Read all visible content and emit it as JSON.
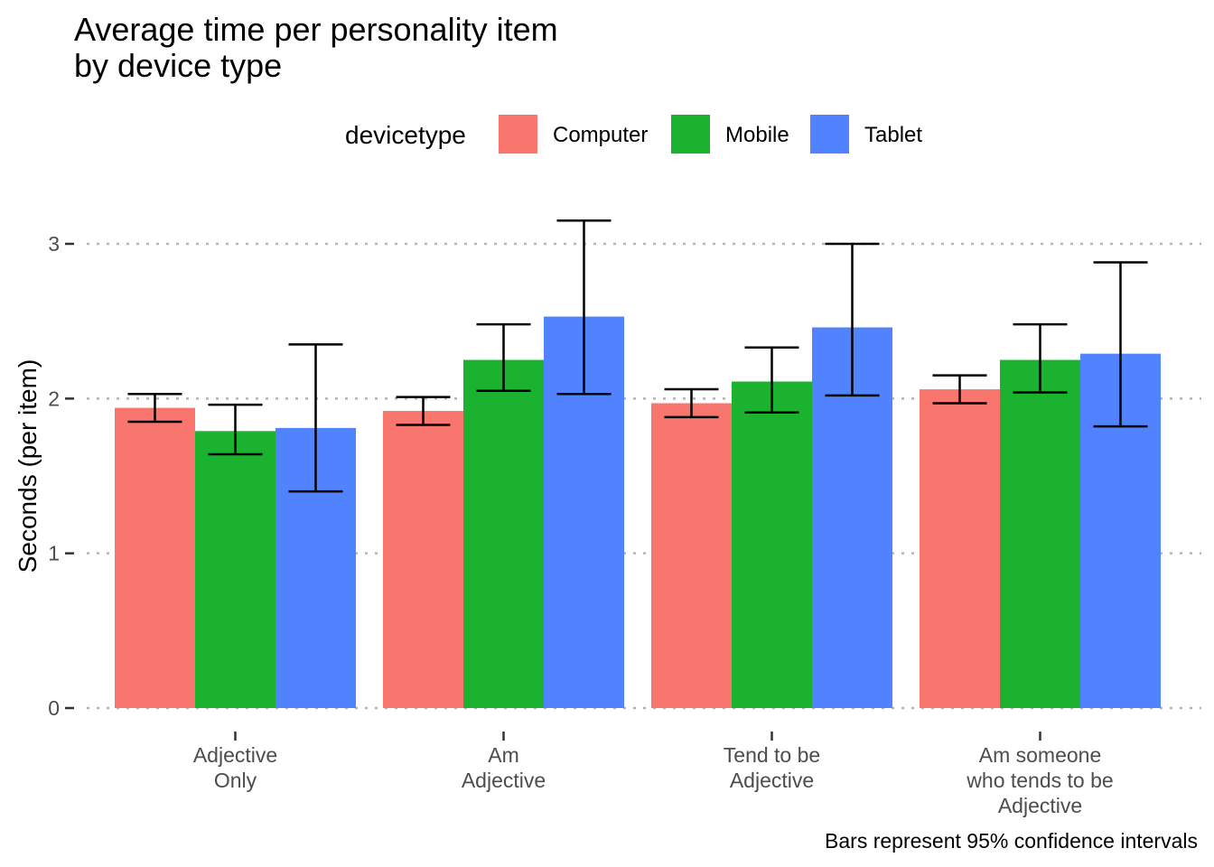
{
  "chart_data": {
    "type": "bar",
    "title": [
      "Average time per personality item",
      "by device type"
    ],
    "ylabel": "Seconds (per item)",
    "xlabel": "",
    "caption": "Bars represent 95% confidence intervals",
    "legend": {
      "title": "devicetype",
      "position": "top"
    },
    "ylim": [
      0,
      3.3
    ],
    "yticks": [
      0,
      1,
      2,
      3
    ],
    "grid": true,
    "categories": [
      [
        "Adjective",
        "Only"
      ],
      [
        "Am",
        "Adjective"
      ],
      [
        "Tend to be",
        "Adjective"
      ],
      [
        "Am someone",
        "who tends to be",
        "Adjective"
      ]
    ],
    "series": [
      {
        "name": "Computer",
        "color": "#F8766D",
        "values": [
          1.94,
          1.92,
          1.97,
          2.06
        ],
        "ci_low": [
          1.85,
          1.83,
          1.88,
          1.97
        ],
        "ci_high": [
          2.03,
          2.01,
          2.06,
          2.15
        ]
      },
      {
        "name": "Mobile",
        "color": "#1AB22F",
        "values": [
          1.79,
          2.25,
          2.11,
          2.25
        ],
        "ci_low": [
          1.64,
          2.05,
          1.91,
          2.04
        ],
        "ci_high": [
          1.96,
          2.48,
          2.33,
          2.48
        ]
      },
      {
        "name": "Tablet",
        "color": "#5183FF",
        "values": [
          1.81,
          2.53,
          2.46,
          2.29
        ],
        "ci_low": [
          1.4,
          2.03,
          2.02,
          1.82
        ],
        "ci_high": [
          2.35,
          3.15,
          3.0,
          2.88
        ]
      }
    ]
  }
}
